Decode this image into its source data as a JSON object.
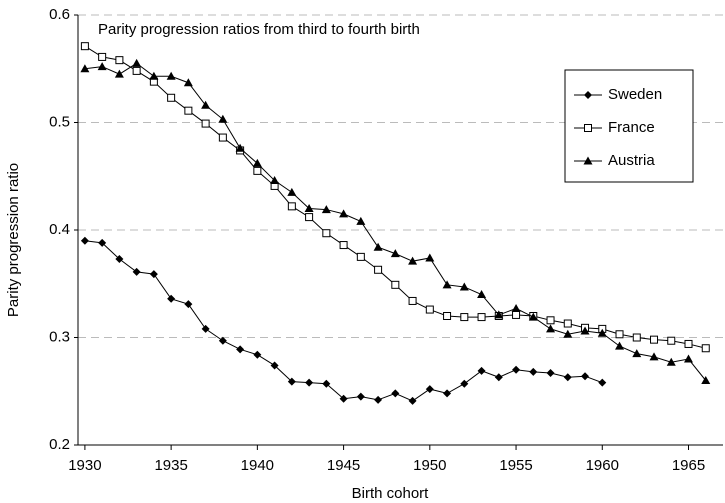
{
  "chart_data": {
    "type": "line",
    "title": "Parity progression ratios from third to fourth birth",
    "x_label": "Birth cohort",
    "y_label": "Parity progression ratio",
    "x": [
      1930,
      1931,
      1932,
      1933,
      1934,
      1935,
      1936,
      1937,
      1938,
      1939,
      1940,
      1941,
      1942,
      1943,
      1944,
      1945,
      1946,
      1947,
      1948,
      1949,
      1950,
      1951,
      1952,
      1953,
      1954,
      1955,
      1956,
      1957,
      1958,
      1959,
      1960,
      1961,
      1962,
      1963,
      1964,
      1965,
      1966
    ],
    "series": [
      {
        "name": "Sweden",
        "color": "#000000",
        "marker": "diamond",
        "values": [
          0.39,
          0.388,
          0.373,
          0.361,
          0.359,
          0.336,
          0.331,
          0.308,
          0.297,
          0.289,
          0.284,
          0.274,
          0.259,
          0.258,
          0.257,
          0.243,
          0.245,
          0.242,
          0.248,
          0.241,
          0.252,
          0.248,
          0.257,
          0.269,
          0.263,
          0.27,
          0.268,
          0.267,
          0.263,
          0.264,
          0.258,
          null,
          null,
          null,
          null,
          null,
          null
        ]
      },
      {
        "name": "France",
        "color": "#000000",
        "marker": "square-open",
        "values": [
          0.571,
          0.561,
          0.558,
          0.548,
          0.538,
          0.523,
          0.511,
          0.499,
          0.486,
          0.474,
          0.455,
          0.441,
          0.422,
          0.412,
          0.397,
          0.386,
          0.375,
          0.363,
          0.349,
          0.334,
          0.326,
          0.32,
          0.319,
          0.319,
          0.32,
          0.321,
          0.32,
          0.316,
          0.313,
          0.309,
          0.308,
          0.303,
          0.3,
          0.298,
          0.297,
          0.294,
          0.29
        ]
      },
      {
        "name": "Austria",
        "color": "#000000",
        "marker": "triangle",
        "values": [
          0.55,
          0.552,
          0.545,
          0.555,
          0.543,
          0.543,
          0.537,
          0.516,
          0.503,
          0.476,
          0.462,
          0.446,
          0.435,
          0.42,
          0.419,
          0.415,
          0.408,
          0.384,
          0.378,
          0.371,
          0.374,
          0.349,
          0.347,
          0.34,
          0.321,
          0.327,
          0.319,
          0.308,
          0.303,
          0.306,
          0.304,
          0.292,
          0.285,
          0.282,
          0.277,
          0.28,
          0.26
        ]
      }
    ],
    "xlim": [
      1929.6,
      1967
    ],
    "xticks": [
      1930,
      1935,
      1940,
      1945,
      1950,
      1955,
      1960,
      1965
    ],
    "ylim": [
      0.2,
      0.6
    ],
    "yticks": [
      0.2,
      0.3,
      0.4,
      0.5,
      0.6
    ],
    "grid": true,
    "legend": "upper right"
  }
}
